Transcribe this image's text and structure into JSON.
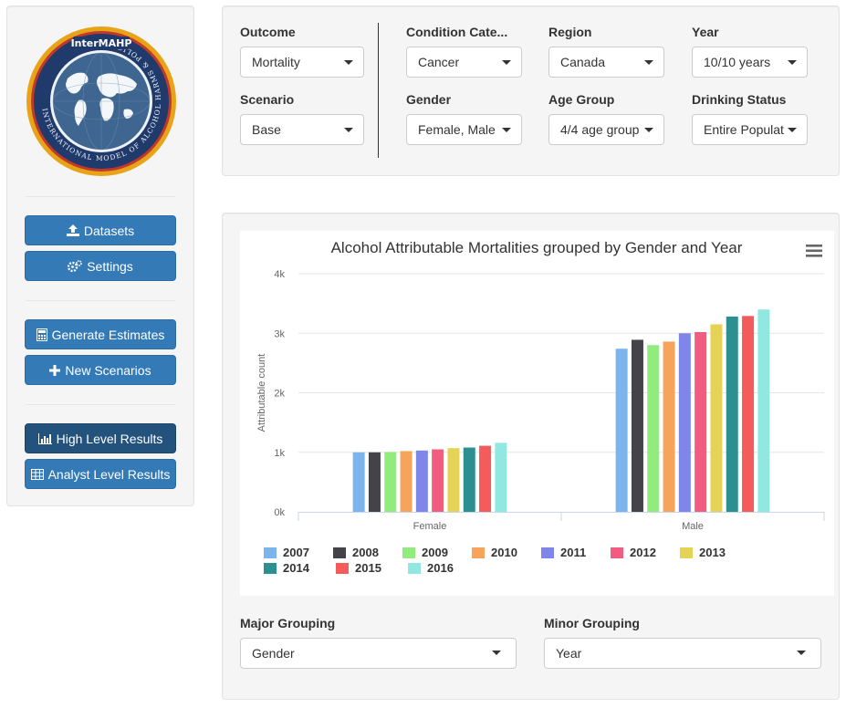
{
  "sidebar": {
    "buttons": [
      {
        "label": "Datasets",
        "icon": "upload-icon"
      },
      {
        "label": "Settings",
        "icon": "gears-icon"
      },
      {
        "label": "Generate Estimates",
        "icon": "calculator-icon"
      },
      {
        "label": "New Scenarios",
        "icon": "plus-icon"
      },
      {
        "label": "High Level Results",
        "icon": "bar-chart-icon",
        "active": true
      },
      {
        "label": "Analyst Level Results",
        "icon": "table-icon"
      }
    ],
    "logo": {
      "text": "InterMAHP",
      "ring_text": "INTERNATIONAL MODEL OF ALCOHOL HARMS & POLICIES"
    }
  },
  "filters": {
    "outcome": {
      "label": "Outcome",
      "value": "Mortality"
    },
    "scenario": {
      "label": "Scenario",
      "value": "Base"
    },
    "condition": {
      "label": "Condition Cate...",
      "value": "Cancer"
    },
    "gender": {
      "label": "Gender",
      "value": "Female, Male"
    },
    "region": {
      "label": "Region",
      "value": "Canada"
    },
    "age_group": {
      "label": "Age Group",
      "value": "4/4 age group"
    },
    "year": {
      "label": "Year",
      "value": "10/10 years"
    },
    "drinking_status": {
      "label": "Drinking Status",
      "value": "Entire Populat"
    }
  },
  "results": {
    "major_grouping": {
      "label": "Major Grouping",
      "value": "Gender"
    },
    "minor_grouping": {
      "label": "Minor Grouping",
      "value": "Year"
    }
  },
  "chart_data": {
    "type": "bar",
    "title": "Alcohol Attributable Mortalities grouped by Gender and Year",
    "xlabel": "",
    "ylabel": "Attributable count",
    "categories": [
      "Female",
      "Male"
    ],
    "ylim": [
      0,
      4000
    ],
    "yticks": [
      "0k",
      "1k",
      "2k",
      "3k",
      "4k"
    ],
    "grid": true,
    "legend_position": "bottom",
    "series": [
      {
        "name": "2007",
        "color": "#7cb5ec",
        "values": [
          1000,
          2740
        ]
      },
      {
        "name": "2008",
        "color": "#434348",
        "values": [
          1000,
          2890
        ]
      },
      {
        "name": "2009",
        "color": "#90ed7d",
        "values": [
          1005,
          2800
        ]
      },
      {
        "name": "2010",
        "color": "#f7a35c",
        "values": [
          1020,
          2860
        ]
      },
      {
        "name": "2011",
        "color": "#8085e9",
        "values": [
          1030,
          3000
        ]
      },
      {
        "name": "2012",
        "color": "#f15c80",
        "values": [
          1050,
          3020
        ]
      },
      {
        "name": "2013",
        "color": "#e4d354",
        "values": [
          1070,
          3150
        ]
      },
      {
        "name": "2014",
        "color": "#2b908f",
        "values": [
          1080,
          3280
        ]
      },
      {
        "name": "2015",
        "color": "#f45b5b",
        "values": [
          1110,
          3290
        ]
      },
      {
        "name": "2016",
        "color": "#91e8e1",
        "values": [
          1160,
          3400
        ]
      }
    ]
  }
}
